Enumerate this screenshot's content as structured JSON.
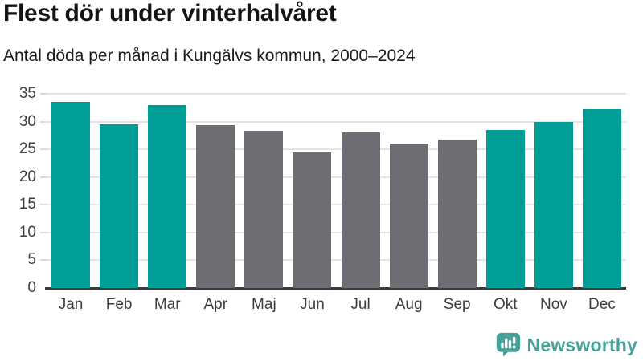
{
  "header": {
    "title": "Flest dör under vinterhalvåret",
    "subtitle": "Antal döda per månad i Kungälvs kommun, 2000–2024"
  },
  "chart_data": {
    "type": "bar",
    "title": "Flest dör under vinterhalvåret",
    "subtitle": "Antal döda per månad i Kungälvs kommun, 2000–2024",
    "categories": [
      "Jan",
      "Feb",
      "Mar",
      "Apr",
      "Maj",
      "Jun",
      "Jul",
      "Aug",
      "Sep",
      "Okt",
      "Nov",
      "Dec"
    ],
    "values": [
      33.5,
      29.5,
      33.0,
      29.3,
      28.3,
      24.4,
      28.0,
      26.0,
      26.8,
      28.5,
      30.0,
      32.3
    ],
    "bar_colors": [
      "#009e96",
      "#009e96",
      "#009e96",
      "#6e6d74",
      "#6e6d74",
      "#6e6d74",
      "#6e6d74",
      "#6e6d74",
      "#6e6d74",
      "#009e96",
      "#009e96",
      "#009e96"
    ],
    "highlight_color": "#009e96",
    "base_color": "#6e6d74",
    "xlabel": "",
    "ylabel": "",
    "ylim": [
      0,
      35
    ],
    "yticks": [
      0,
      5,
      10,
      15,
      20,
      25,
      30,
      35
    ],
    "grid": true,
    "legend": false
  },
  "footer": {
    "brand": "Newsworthy",
    "brand_color": "#45a19a",
    "logo_icon": "bar-chart-speech-bubble-icon"
  }
}
